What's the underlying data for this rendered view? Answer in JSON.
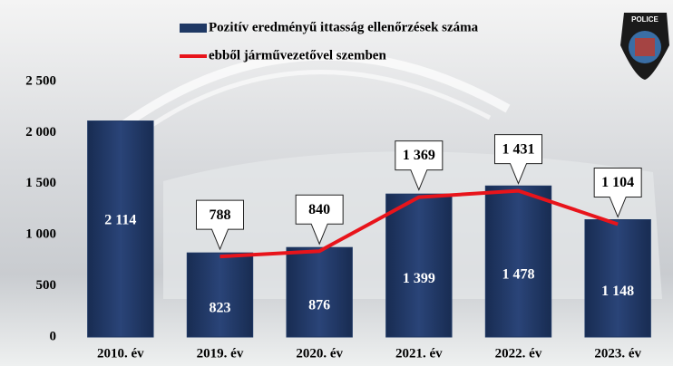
{
  "chart_data": {
    "type": "bar",
    "categories": [
      "2010. év",
      "2019. év",
      "2020. év",
      "2021. év",
      "2022. év",
      "2023. év"
    ],
    "series": [
      {
        "name": "Pozitív eredményű ittasság ellenőrzések száma",
        "type": "bar",
        "color": "#1f3864",
        "values": [
          2114,
          823,
          876,
          1399,
          1478,
          1148
        ],
        "value_labels": [
          "2 114",
          "823",
          "876",
          "1 399",
          "1 478",
          "1 148"
        ]
      },
      {
        "name": "ebből járművezetővel szemben",
        "type": "line",
        "color": "#e8141b",
        "values": [
          null,
          788,
          840,
          1369,
          1431,
          1104
        ],
        "value_labels": [
          null,
          "788",
          "840",
          "1 369",
          "1 431",
          "1 104"
        ]
      }
    ],
    "ylim": [
      0,
      2500
    ],
    "yticks": [
      0,
      500,
      {
        "value": 1000,
        "label": "1 000"
      },
      {
        "value": 1500,
        "label": "1 500"
      },
      {
        "value": 2000,
        "label": "2 000"
      },
      {
        "value": 2500,
        "label": "2 500"
      }
    ]
  }
}
